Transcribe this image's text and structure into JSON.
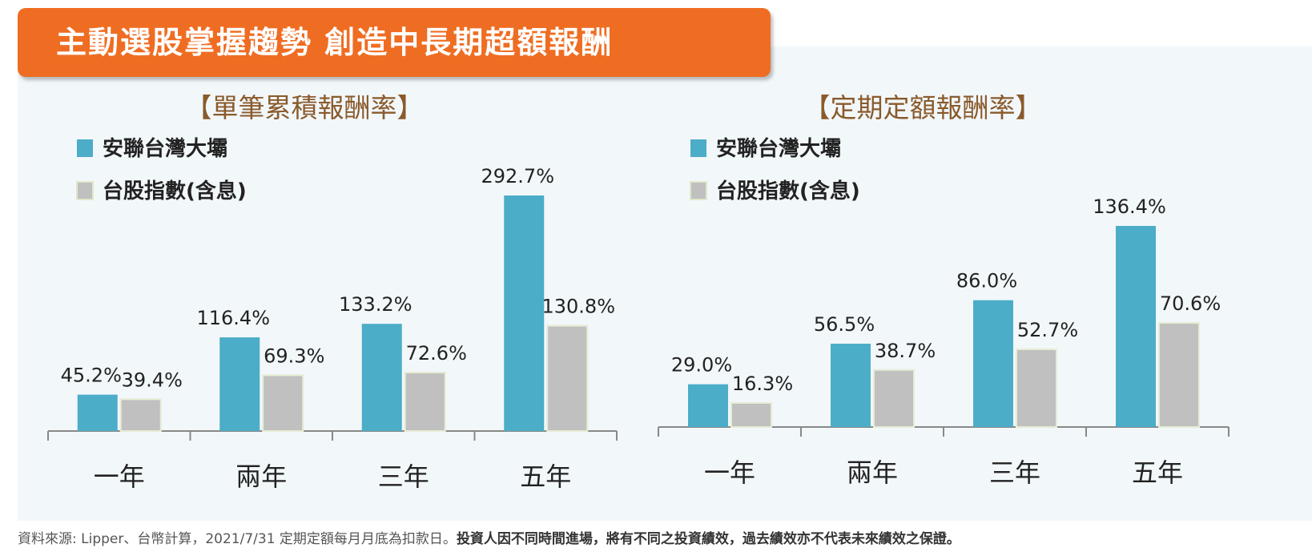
{
  "banner": {
    "title": "主動選股掌握趨勢  創造中長期超額報酬"
  },
  "colors": {
    "banner": "#ef6d22",
    "fund": "#4badc8",
    "index": "#c0c0c0",
    "title": "#8a5a2b"
  },
  "chart_data": [
    {
      "type": "bar",
      "title": "【單筆累積報酬率】",
      "categories": [
        "一年",
        "兩年",
        "三年",
        "五年"
      ],
      "series": [
        {
          "name": "安聯台灣大壩",
          "values": [
            45.2,
            116.4,
            133.2,
            292.7
          ],
          "labels": [
            "45.2%",
            "116.4%",
            "133.2%",
            "292.7%"
          ]
        },
        {
          "name": "台股指數(含息)",
          "values": [
            39.4,
            69.3,
            72.6,
            130.8
          ],
          "labels": [
            "39.4%",
            "69.3%",
            "72.6%",
            "130.8%"
          ]
        }
      ],
      "ylim": [
        0,
        292.7
      ],
      "grid": false,
      "legend": "top-left"
    },
    {
      "type": "bar",
      "title": "【定期定額報酬率】",
      "categories": [
        "一年",
        "兩年",
        "三年",
        "五年"
      ],
      "series": [
        {
          "name": "安聯台灣大壩",
          "values": [
            29.0,
            56.5,
            86.0,
            136.4
          ],
          "labels": [
            "29.0%",
            "56.5%",
            "86.0%",
            "136.4%"
          ]
        },
        {
          "name": "台股指數(含息)",
          "values": [
            16.3,
            38.7,
            52.7,
            70.6
          ],
          "labels": [
            "16.3%",
            "38.7%",
            "52.7%",
            "70.6%"
          ]
        }
      ],
      "ylim": [
        0,
        136.4
      ],
      "grid": false,
      "legend": "top-left"
    }
  ],
  "footer": {
    "source": "資料來源: Lipper、台幣計算，2021/7/31 定期定額每月月底為扣款日。",
    "disclaimer": "投資人因不同時間進場，將有不同之投資績效，過去績效亦不代表未來績效之保證。"
  }
}
